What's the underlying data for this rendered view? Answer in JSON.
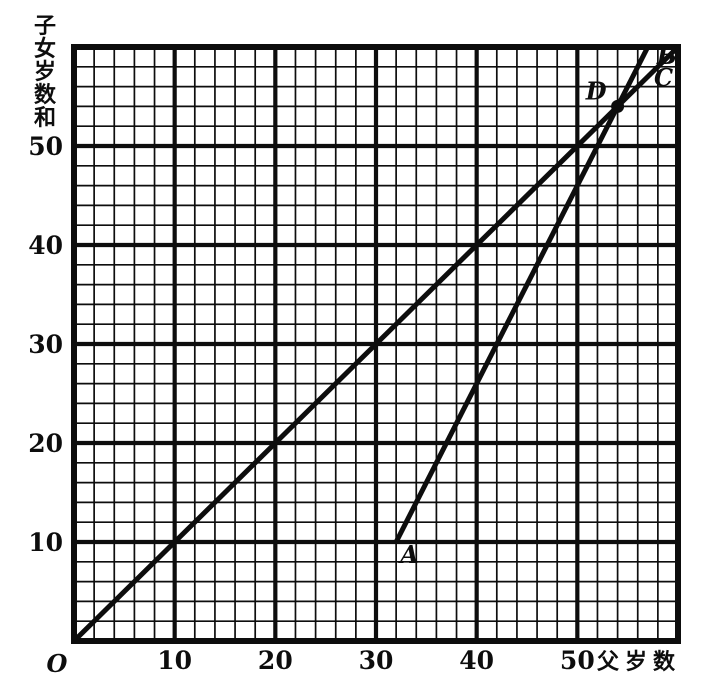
{
  "chart_data": {
    "type": "line",
    "title": "",
    "xlabel": "父岁数",
    "ylabel": "子女岁数和",
    "origin_label": "O",
    "xlim": [
      0,
      60
    ],
    "ylim": [
      0,
      60
    ],
    "x_ticks": [
      10,
      20,
      30,
      40,
      50
    ],
    "y_ticks": [
      10,
      20,
      30,
      40,
      50
    ],
    "grid": {
      "on": true,
      "minor_step": 2,
      "major_step": 10
    },
    "series": [
      {
        "name": "line-OC",
        "start_label": "",
        "end_label": "C",
        "points": [
          [
            0,
            0
          ],
          [
            60,
            60
          ]
        ]
      },
      {
        "name": "line-AB",
        "start_label": "A",
        "end_label": "B",
        "points": [
          [
            32,
            10
          ],
          [
            57,
            60
          ]
        ]
      }
    ],
    "marked_points": [
      {
        "label": "D",
        "x": 54,
        "y": 54
      }
    ],
    "ink_color": "#0d0d0d",
    "background_color": "#ffffff"
  }
}
